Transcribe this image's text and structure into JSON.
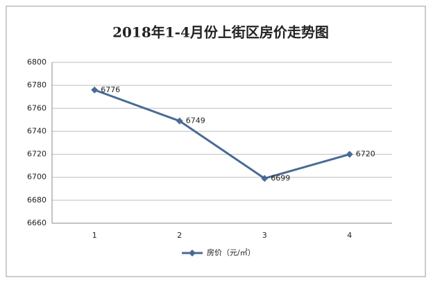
{
  "chart_data": {
    "type": "line",
    "title": "2018年1-4月份上街区房价走势图",
    "categories": [
      "1",
      "2",
      "3",
      "4"
    ],
    "series": [
      {
        "name": "房价（元/㎡）",
        "color": "#4a6a96",
        "values": [
          6776,
          6749,
          6699,
          6720
        ]
      }
    ],
    "ylim": [
      6660,
      6800
    ],
    "yticks": [
      6660,
      6680,
      6700,
      6720,
      6740,
      6760,
      6780,
      6800
    ],
    "grid": true,
    "legend": "bottom",
    "data_labels": true
  }
}
